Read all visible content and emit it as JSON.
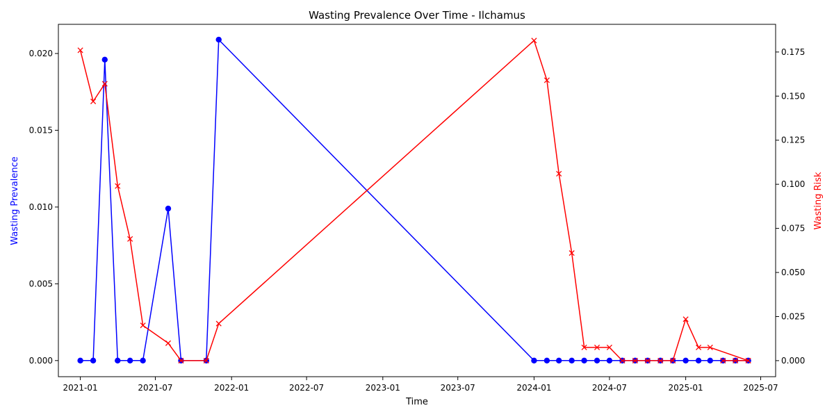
{
  "chart_data": {
    "type": "line",
    "title": "Wasting Prevalence Over Time - Ilchamus",
    "xlabel": "Time",
    "ylabel_left": "Wasting Prevalence",
    "ylabel_right": "Wasting Risk",
    "xlim": [
      "2020-11-09",
      "2025-08-06"
    ],
    "x_ticks": [
      {
        "date": "2021-01-01",
        "label": "2021-01"
      },
      {
        "date": "2021-07-01",
        "label": "2021-07"
      },
      {
        "date": "2022-01-01",
        "label": "2022-01"
      },
      {
        "date": "2022-07-01",
        "label": "2022-07"
      },
      {
        "date": "2023-01-01",
        "label": "2023-01"
      },
      {
        "date": "2023-07-01",
        "label": "2023-07"
      },
      {
        "date": "2024-01-01",
        "label": "2024-01"
      },
      {
        "date": "2024-07-01",
        "label": "2024-07"
      },
      {
        "date": "2025-01-01",
        "label": "2025-01"
      },
      {
        "date": "2025-07-01",
        "label": "2025-07"
      }
    ],
    "ylim_left": [
      -0.00105,
      0.0219
    ],
    "yticks_left": [
      0.0,
      0.005,
      0.01,
      0.015,
      0.02
    ],
    "ytick_labels_left": [
      "0.000",
      "0.005",
      "0.010",
      "0.015",
      "0.020"
    ],
    "ylim_right": [
      -0.0091,
      0.1907
    ],
    "yticks_right": [
      0.0,
      0.025,
      0.05,
      0.075,
      0.1,
      0.125,
      0.15,
      0.175
    ],
    "ytick_labels_right": [
      "0.000",
      "0.025",
      "0.050",
      "0.075",
      "0.100",
      "0.125",
      "0.150",
      "0.175"
    ],
    "grid": false,
    "series": [
      {
        "axis": "left",
        "color": "#0000ff",
        "marker": "circle",
        "x": [
          "2021-01-01",
          "2021-02-01",
          "2021-03-01",
          "2021-04-01",
          "2021-05-01",
          "2021-06-01",
          "2021-08-01",
          "2021-09-01",
          "2021-11-01",
          "2021-12-01",
          "2024-01-01",
          "2024-02-01",
          "2024-03-01",
          "2024-04-01",
          "2024-05-01",
          "2024-06-01",
          "2024-07-01",
          "2024-08-01",
          "2024-09-01",
          "2024-10-01",
          "2024-11-01",
          "2024-12-01",
          "2025-01-01",
          "2025-02-01",
          "2025-03-01",
          "2025-04-01",
          "2025-05-01",
          "2025-06-01"
        ],
        "values": [
          0.0,
          0.0,
          0.0196,
          0.0,
          0.0,
          0.0,
          0.0099,
          0.0,
          0.0,
          0.0209,
          0.0,
          0.0,
          0.0,
          0.0,
          0.0,
          0.0,
          0.0,
          0.0,
          0.0,
          0.0,
          0.0,
          0.0,
          0.0,
          0.0,
          0.0,
          0.0,
          0.0,
          0.0
        ]
      },
      {
        "axis": "right",
        "color": "#ff0000",
        "marker": "x",
        "x": [
          "2021-01-01",
          "2021-02-01",
          "2021-03-01",
          "2021-04-01",
          "2021-05-01",
          "2021-06-01",
          "2021-08-01",
          "2021-09-01",
          "2021-11-01",
          "2021-12-01",
          "2024-01-01",
          "2024-02-01",
          "2024-03-01",
          "2024-04-01",
          "2024-05-01",
          "2024-06-01",
          "2024-07-01",
          "2024-08-01",
          "2024-09-01",
          "2024-10-01",
          "2024-11-01",
          "2024-12-01",
          "2025-01-01",
          "2025-02-01",
          "2025-03-01",
          "2025-06-01",
          "2025-05-01",
          "2025-04-01"
        ],
        "values": [
          0.176,
          0.147,
          0.157,
          0.099,
          0.069,
          0.02,
          0.0099,
          0.0,
          0.0,
          0.021,
          0.1815,
          0.159,
          0.106,
          0.061,
          0.0075,
          0.0075,
          0.0075,
          0.0,
          0.0,
          0.0,
          0.0,
          0.0,
          0.0235,
          0.0075,
          0.0075,
          0.0,
          0.0,
          0.0
        ]
      }
    ]
  }
}
